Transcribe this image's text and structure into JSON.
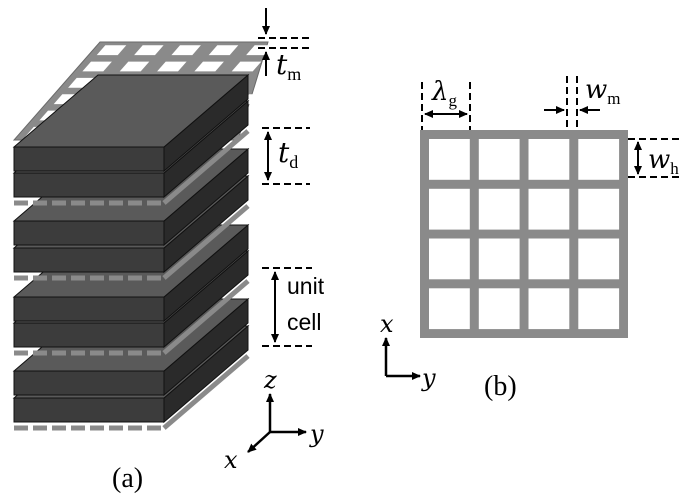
{
  "panel_a": {
    "caption": "(a)",
    "t_m": {
      "symbol": "t",
      "sub": "m"
    },
    "t_d": {
      "symbol": "t",
      "sub": "d"
    },
    "unit_cell": [
      "unit",
      "cell"
    ],
    "axes": {
      "z": "z",
      "y": "y",
      "x": "x"
    }
  },
  "panel_b": {
    "caption": "(b)",
    "lambda_g": {
      "symbol": "λ",
      "sub": "g"
    },
    "w_m": {
      "symbol": "w",
      "sub": "m"
    },
    "w_h": {
      "symbol": "w",
      "sub": "h"
    },
    "axes": {
      "x": "x",
      "y": "y"
    }
  },
  "colors": {
    "metal_mesh": "#8a8a8a",
    "dielectric_top": "#5a5a5a",
    "dielectric_front": "#3c3c3c",
    "dielectric_side": "#2a2a2a",
    "ink": "#000000",
    "background": "#ffffff"
  }
}
